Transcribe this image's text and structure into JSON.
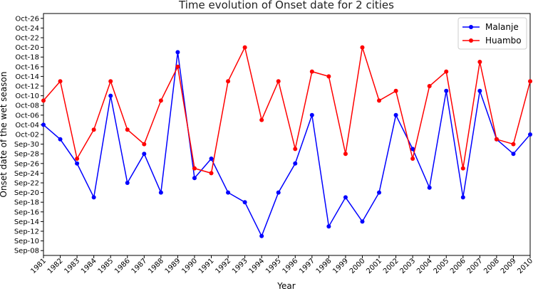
{
  "chart_data": {
    "type": "line",
    "title": "Time evolution of Onset date for 2 cities",
    "xlabel": "Year",
    "ylabel": "Onset date of the wet season",
    "x": [
      1981,
      1982,
      1983,
      1984,
      1985,
      1986,
      1987,
      1988,
      1989,
      1990,
      1991,
      1992,
      1993,
      1994,
      1995,
      1996,
      1997,
      1998,
      1999,
      2000,
      2001,
      2002,
      2003,
      2004,
      2005,
      2006,
      2007,
      2008,
      2009,
      2010
    ],
    "xlim": [
      1981,
      2010
    ],
    "ylim": [
      "Sep-07",
      "Oct-27"
    ],
    "y_ticks": [
      "Sep-08",
      "Sep-10",
      "Sep-12",
      "Sep-14",
      "Sep-16",
      "Sep-18",
      "Sep-20",
      "Sep-22",
      "Sep-24",
      "Sep-26",
      "Sep-28",
      "Sep-30",
      "Oct-02",
      "Oct-04",
      "Oct-06",
      "Oct-08",
      "Oct-10",
      "Oct-12",
      "Oct-14",
      "Oct-16",
      "Oct-18",
      "Oct-20",
      "Oct-22",
      "Oct-24",
      "Oct-26"
    ],
    "grid": false,
    "legend_position": "top-right",
    "series": [
      {
        "name": "Malanje",
        "color": "#0000ff",
        "values": [
          "Oct-04",
          "Oct-01",
          "Sep-26",
          "Sep-19",
          "Oct-10",
          "Sep-22",
          "Sep-28",
          "Sep-20",
          "Oct-19",
          "Sep-23",
          "Sep-27",
          "Sep-20",
          "Sep-18",
          "Sep-11",
          "Sep-20",
          "Sep-26",
          "Oct-06",
          "Sep-13",
          "Sep-19",
          "Sep-14",
          "Sep-20",
          "Oct-06",
          "Sep-29",
          "Sep-21",
          "Oct-11",
          "Sep-19",
          "Oct-11",
          "Oct-01",
          "Sep-28",
          "Oct-02"
        ]
      },
      {
        "name": "Huambo",
        "color": "#ff0000",
        "values": [
          "Oct-09",
          "Oct-13",
          "Sep-27",
          "Oct-03",
          "Oct-13",
          "Oct-03",
          "Sep-30",
          "Oct-09",
          "Oct-16",
          "Sep-25",
          "Sep-24",
          "Oct-13",
          "Oct-20",
          "Oct-05",
          "Oct-13",
          "Sep-29",
          "Oct-15",
          "Oct-14",
          "Sep-28",
          "Oct-20",
          "Oct-09",
          "Oct-11",
          "Sep-27",
          "Oct-12",
          "Oct-15",
          "Sep-25",
          "Oct-17",
          "Oct-01",
          "Sep-30",
          "Oct-13"
        ]
      }
    ]
  }
}
